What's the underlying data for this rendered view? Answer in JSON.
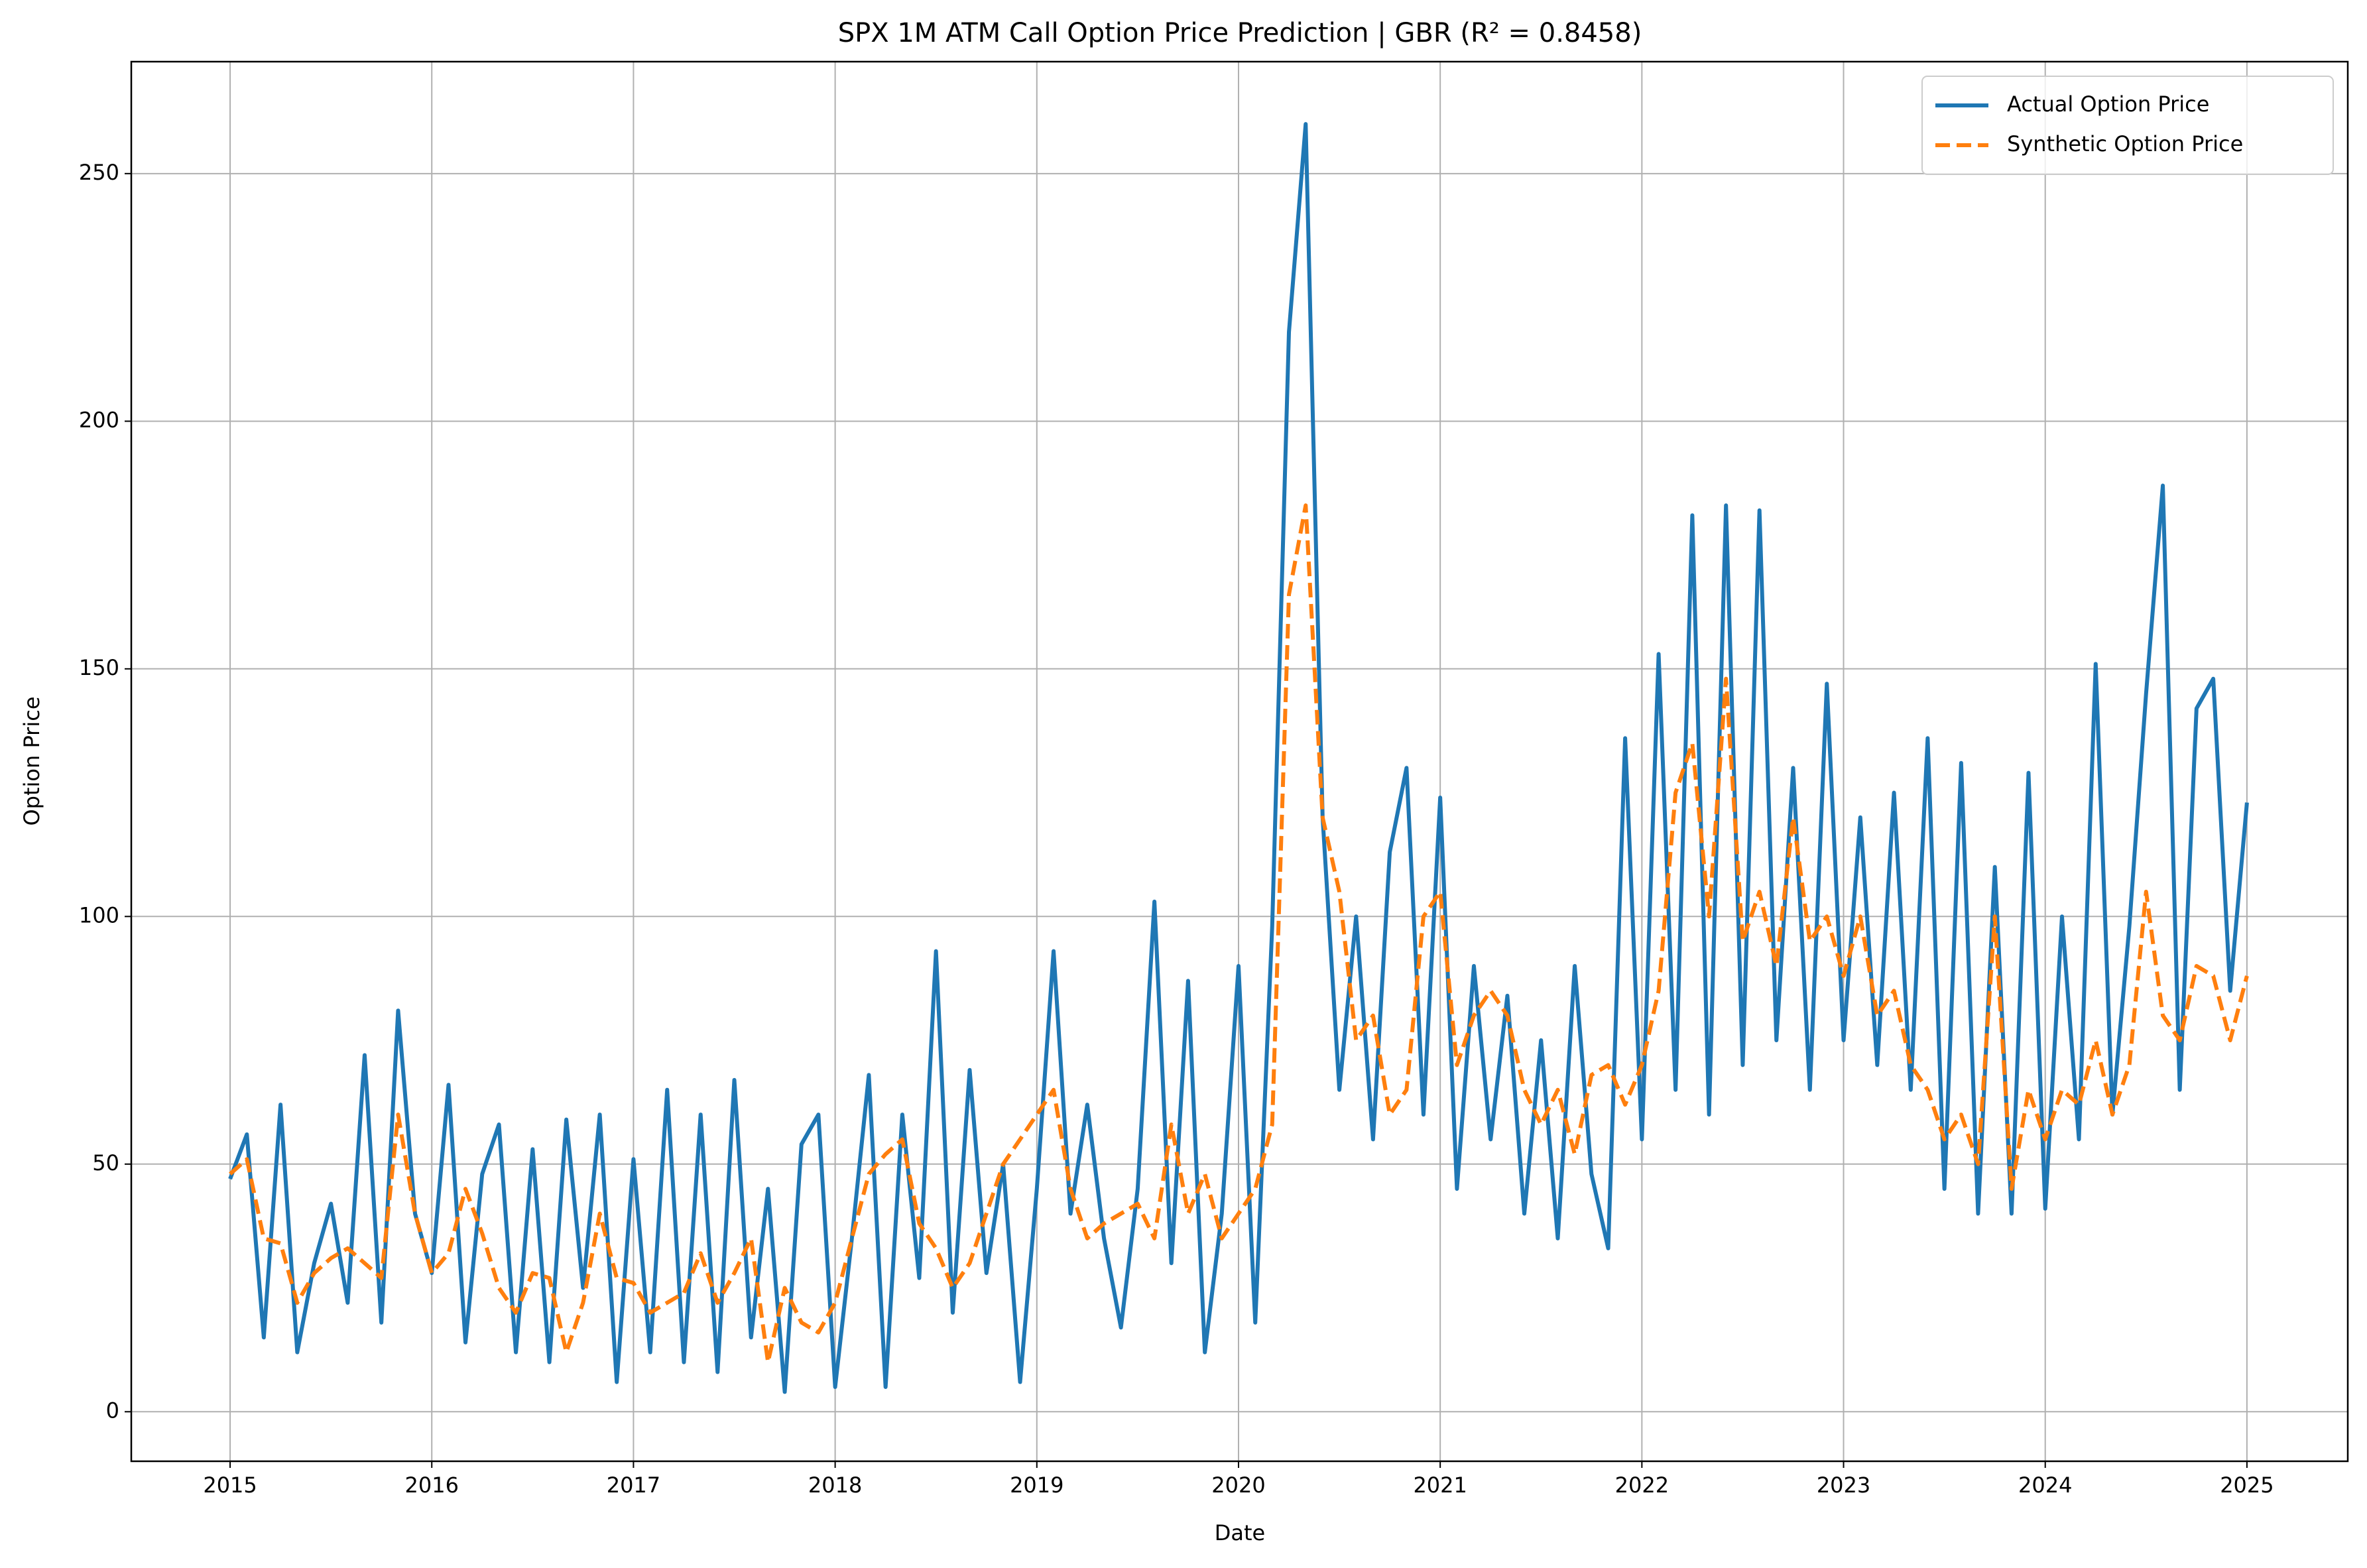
{
  "chart_data": {
    "type": "line",
    "title": "SPX 1M ATM Call Option Price Prediction | GBR (R² = 0.8458)",
    "x_label": "Date",
    "y_label": "Option Price",
    "x": [
      2015,
      2015.083,
      2015.167,
      2015.25,
      2015.333,
      2015.417,
      2015.5,
      2015.583,
      2015.667,
      2015.75,
      2015.833,
      2015.917,
      2016,
      2016.083,
      2016.167,
      2016.25,
      2016.333,
      2016.417,
      2016.5,
      2016.583,
      2016.667,
      2016.75,
      2016.833,
      2016.917,
      2017,
      2017.083,
      2017.167,
      2017.25,
      2017.333,
      2017.417,
      2017.5,
      2017.583,
      2017.667,
      2017.75,
      2017.833,
      2017.917,
      2018,
      2018.083,
      2018.167,
      2018.25,
      2018.333,
      2018.417,
      2018.5,
      2018.583,
      2018.667,
      2018.75,
      2018.833,
      2018.917,
      2019,
      2019.083,
      2019.167,
      2019.25,
      2019.333,
      2019.417,
      2019.5,
      2019.583,
      2019.667,
      2019.75,
      2019.833,
      2019.917,
      2020,
      2020.083,
      2020.167,
      2020.25,
      2020.333,
      2020.417,
      2020.5,
      2020.583,
      2020.667,
      2020.75,
      2020.833,
      2020.917,
      2021,
      2021.083,
      2021.167,
      2021.25,
      2021.333,
      2021.417,
      2021.5,
      2021.583,
      2021.667,
      2021.75,
      2021.833,
      2021.917,
      2022,
      2022.083,
      2022.167,
      2022.25,
      2022.333,
      2022.417,
      2022.5,
      2022.583,
      2022.667,
      2022.75,
      2022.833,
      2022.917,
      2023,
      2023.083,
      2023.167,
      2023.25,
      2023.333,
      2023.417,
      2023.5,
      2023.583,
      2023.667,
      2023.75,
      2023.833,
      2023.917,
      2024,
      2024.083,
      2024.167,
      2024.25,
      2024.333,
      2024.417,
      2024.5,
      2024.583,
      2024.667,
      2024.75,
      2024.833,
      2024.917,
      2025
    ],
    "series": [
      {
        "name": "Actual Option Price",
        "color": "#1f77b4",
        "style": "solid",
        "values": [
          47,
          56,
          15,
          62,
          12,
          30,
          42,
          22,
          72,
          18,
          81,
          40,
          28,
          66,
          14,
          48,
          58,
          12,
          53,
          10,
          59,
          25,
          60,
          6,
          51,
          12,
          65,
          10,
          60,
          8,
          67,
          15,
          45,
          4,
          54,
          60,
          5,
          35,
          68,
          5,
          60,
          27,
          93,
          20,
          69,
          28,
          50,
          6,
          45,
          93,
          40,
          62,
          35,
          17,
          45,
          103,
          30,
          87,
          12,
          40,
          90,
          18,
          98,
          218,
          260,
          120,
          65,
          100,
          55,
          113,
          130,
          60,
          124,
          45,
          90,
          55,
          84,
          40,
          75,
          35,
          90,
          48,
          33,
          136,
          55,
          153,
          65,
          181,
          60,
          183,
          70,
          182,
          75,
          130,
          65,
          147,
          75,
          120,
          70,
          125,
          65,
          136,
          45,
          131,
          40,
          110,
          40,
          129,
          41,
          100,
          55,
          151,
          60,
          98,
          145,
          187,
          65,
          142,
          148,
          85,
          123
        ]
      },
      {
        "name": "Synthetic Option Price",
        "color": "#ff7f0e",
        "style": "dashed",
        "values": [
          48,
          51,
          35,
          34,
          22,
          28,
          31,
          33,
          30,
          27,
          60,
          40,
          28,
          32,
          45,
          36,
          25,
          20,
          28,
          27,
          12,
          22,
          40,
          27,
          26,
          20,
          22,
          24,
          32,
          22,
          28,
          35,
          10,
          25,
          18,
          16,
          22,
          35,
          48,
          52,
          55,
          38,
          33,
          25,
          30,
          40,
          50,
          55,
          60,
          65,
          45,
          35,
          38,
          40,
          42,
          35,
          58,
          40,
          48,
          35,
          40,
          45,
          58,
          165,
          183,
          120,
          105,
          75,
          80,
          60,
          65,
          100,
          105,
          70,
          80,
          85,
          80,
          65,
          58,
          65,
          52,
          68,
          70,
          62,
          70,
          85,
          125,
          135,
          100,
          148,
          95,
          105,
          90,
          120,
          95,
          100,
          88,
          100,
          80,
          85,
          70,
          65,
          55,
          60,
          50,
          100,
          45,
          65,
          55,
          65,
          62,
          75,
          60,
          70,
          105,
          80,
          75,
          90,
          88,
          75,
          88
        ]
      }
    ],
    "xlim": [
      2014.51,
      2025.5
    ],
    "xticks": [
      2015,
      2016,
      2017,
      2018,
      2019,
      2020,
      2021,
      2022,
      2023,
      2024,
      2025
    ],
    "ylim": [
      -10,
      272.6
    ],
    "yticks": [
      0,
      50,
      100,
      150,
      200,
      250
    ],
    "grid": true,
    "legend": "upper right"
  }
}
